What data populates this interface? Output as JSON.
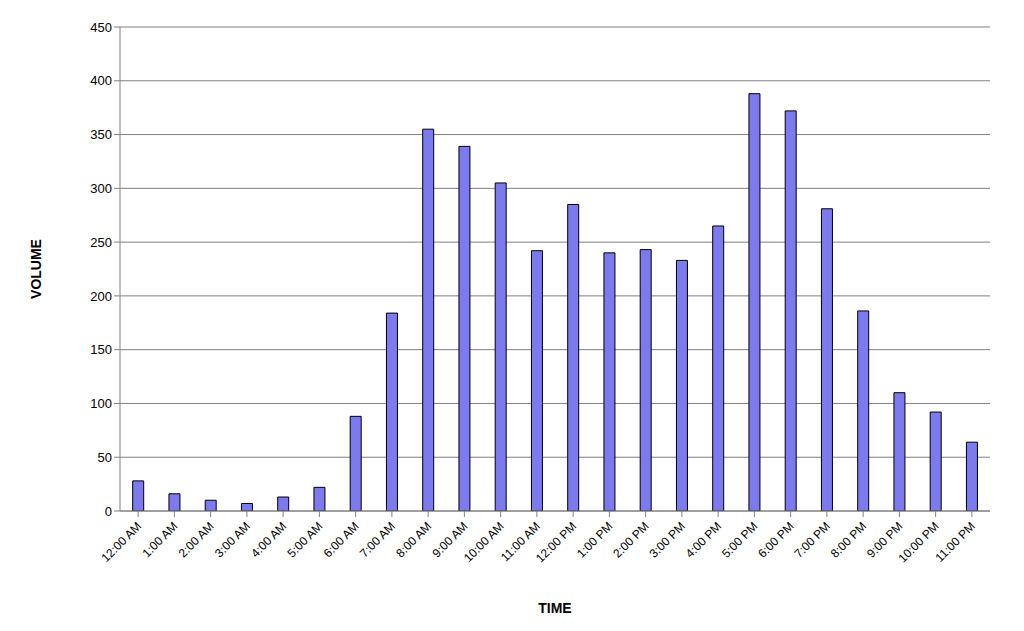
{
  "chart_data": {
    "type": "bar",
    "x_label": "TIME",
    "y_label": "VOLUME",
    "categories": [
      "12:00 AM",
      "1:00 AM",
      "2:00 AM",
      "3:00 AM",
      "4:00 AM",
      "5:00 AM",
      "6:00 AM",
      "7:00 AM",
      "8:00 AM",
      "9:00 AM",
      "10:00 AM",
      "11:00 AM",
      "12:00 PM",
      "1:00 PM",
      "2:00 PM",
      "3:00 PM",
      "4:00 PM",
      "5:00 PM",
      "6:00 PM",
      "7:00 PM",
      "8:00 PM",
      "9:00 PM",
      "10:00 PM",
      "11:00 PM"
    ],
    "values": [
      28,
      16,
      10,
      7,
      13,
      22,
      88,
      184,
      355,
      339,
      305,
      242,
      285,
      240,
      243,
      233,
      265,
      388,
      372,
      281,
      186,
      110,
      92,
      64
    ],
    "color": "#7b7bef",
    "ylim": [
      0,
      450
    ],
    "yticks": [
      0,
      50,
      100,
      150,
      200,
      250,
      300,
      350,
      400,
      450
    ],
    "grid": true
  }
}
